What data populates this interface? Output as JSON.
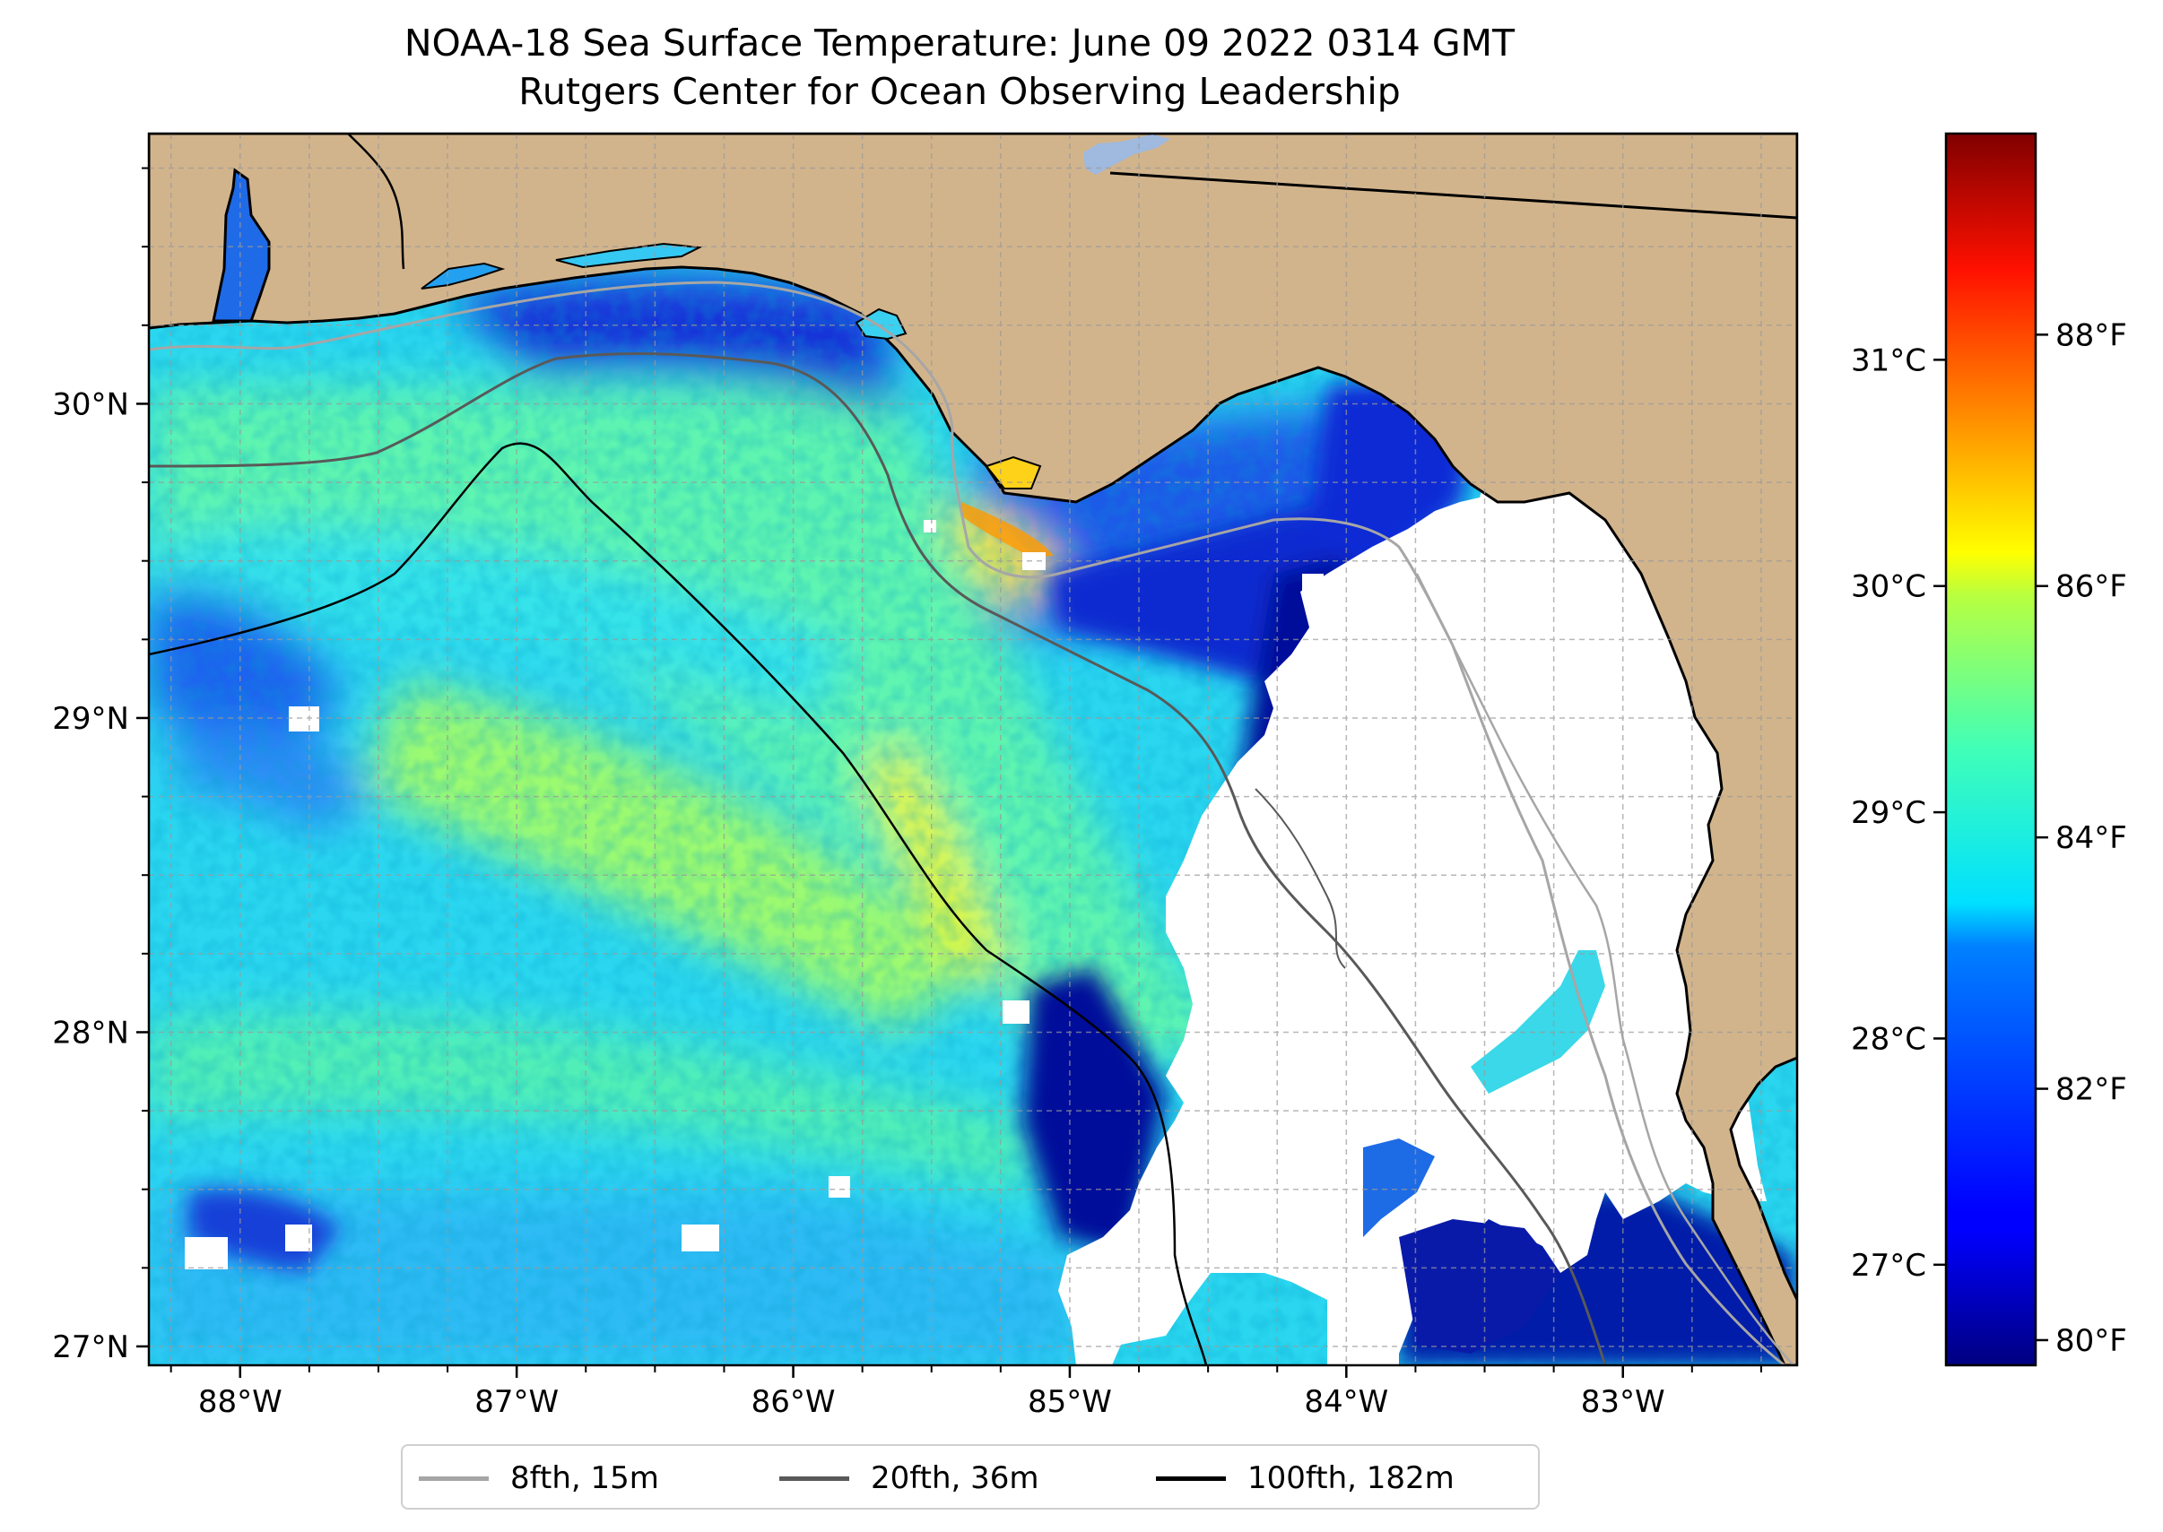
{
  "title_line_1": "NOAA-18 Sea Surface Temperature: June 09 2022 0314 GMT",
  "title_line_2": "Rutgers Center for Ocean Observing Leadership",
  "map": {
    "extent": {
      "lon_min": -88.33,
      "lon_max": -82.37,
      "lat_min": 26.94,
      "lat_max": 30.86
    },
    "lon_ticks": [
      {
        "value": -88,
        "label": "88°W"
      },
      {
        "value": -87,
        "label": "87°W"
      },
      {
        "value": -86,
        "label": "86°W"
      },
      {
        "value": -85,
        "label": "85°W"
      },
      {
        "value": -84,
        "label": "84°W"
      },
      {
        "value": -83,
        "label": "83°W"
      }
    ],
    "lat_ticks": [
      {
        "value": 30,
        "label": "30°N"
      },
      {
        "value": 29,
        "label": "29°N"
      },
      {
        "value": 28,
        "label": "28°N"
      },
      {
        "value": 27,
        "label": "27°N"
      }
    ],
    "gridlines": "dashed, every 0.25°",
    "colors": {
      "land": "#d2b48c",
      "cloud_mask": "#ffffff",
      "lake": "#9fb9df",
      "coastline": "#000000"
    },
    "bathymetry_contours": [
      {
        "label": "8fth, 15m",
        "color": "#a6a6a6"
      },
      {
        "label": "20fth, 36m",
        "color": "#595959"
      },
      {
        "label": "100fth, 182m",
        "color": "#000000"
      }
    ]
  },
  "colorbar": {
    "colormap": "jet",
    "fahrenheit": {
      "min": 79.8,
      "max": 89.6,
      "ticks": [
        {
          "value": 80,
          "label": "80°F"
        },
        {
          "value": 82,
          "label": "82°F"
        },
        {
          "value": 84,
          "label": "84°F"
        },
        {
          "value": 86,
          "label": "86°F"
        },
        {
          "value": 88,
          "label": "88°F"
        }
      ]
    },
    "celsius_ticks": [
      {
        "value": 27,
        "label": "27°C"
      },
      {
        "value": 28,
        "label": "28°C"
      },
      {
        "value": 29,
        "label": "29°C"
      },
      {
        "value": 30,
        "label": "30°C"
      },
      {
        "value": 31,
        "label": "31°C"
      }
    ]
  }
}
